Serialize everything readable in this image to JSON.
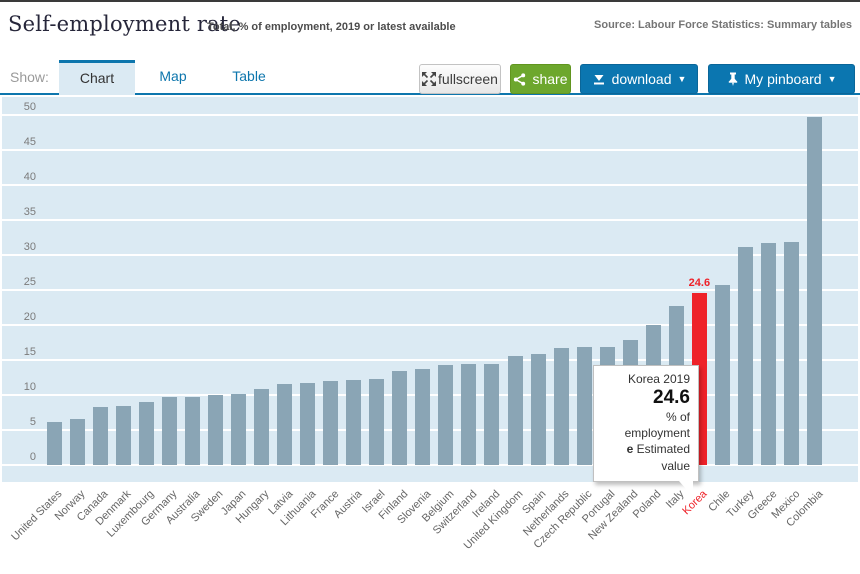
{
  "header": {
    "title": "Self-employment rate",
    "subtitle": "Total, % of employment, 2019 or latest available",
    "source": "Source: Labour Force Statistics: Summary tables"
  },
  "toolbar": {
    "show_label": "Show:",
    "tabs": [
      {
        "label": "Chart",
        "active": true
      },
      {
        "label": "Map",
        "active": false
      },
      {
        "label": "Table",
        "active": false
      }
    ],
    "buttons": {
      "fullscreen": "fullscreen",
      "share": "share",
      "download": "download",
      "pinboard": "My pinboard"
    }
  },
  "chart_data": {
    "type": "bar",
    "title": "Self-employment rate",
    "subtitle": "Total, % of employment, 2019 or latest available",
    "ylabel": "% of employment",
    "ylim": [
      0,
      50
    ],
    "yticks": [
      0,
      5,
      10,
      15,
      20,
      25,
      30,
      35,
      40,
      45,
      50
    ],
    "grid": true,
    "categories": [
      "United States",
      "Norway",
      "Canada",
      "Denmark",
      "Luxembourg",
      "Germany",
      "Australia",
      "Sweden",
      "Japan",
      "Hungary",
      "Latvia",
      "Lithuania",
      "France",
      "Austria",
      "Israel",
      "Finland",
      "Slovenia",
      "Belgium",
      "Switzerland",
      "Ireland",
      "United Kingdom",
      "Spain",
      "Netherlands",
      "Czech Republic",
      "Portugal",
      "New Zealand",
      "Poland",
      "Italy",
      "Korea",
      "Chile",
      "Turkey",
      "Greece",
      "Mexico",
      "Colombia"
    ],
    "values": [
      6.1,
      6.5,
      8.2,
      8.4,
      8.9,
      9.7,
      9.7,
      9.9,
      10.1,
      10.9,
      11.5,
      11.7,
      12.0,
      12.1,
      12.2,
      13.4,
      13.7,
      14.3,
      14.4,
      14.4,
      15.6,
      15.8,
      16.7,
      16.9,
      16.9,
      17.9,
      20.0,
      22.7,
      24.6,
      25.7,
      31.2,
      31.7,
      31.8,
      49.7
    ],
    "highlight": {
      "category": "Korea",
      "value": 24.6,
      "bar_label": "24.6"
    },
    "colors": {
      "bar": "#8aa5b5",
      "highlight": "#ee2229",
      "plot_bg": "#dbeaf3",
      "grid": "#ffffff",
      "accent_blue": "#0d76ad",
      "button_green": "#6da72d"
    }
  },
  "tooltip": {
    "line1": "Korea 2019",
    "value": "24.6",
    "line3": "% of employment",
    "flag": "e",
    "flag_text": " Estimated value"
  }
}
